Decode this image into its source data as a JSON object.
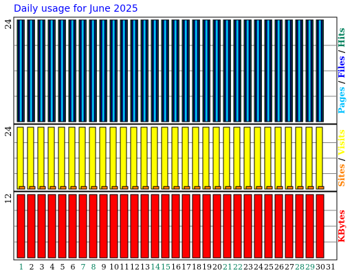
{
  "chart_data": {
    "type": "bar",
    "title": "Daily usage for June 2025",
    "x": [
      "1",
      "2",
      "3",
      "4",
      "5",
      "6",
      "7",
      "8",
      "9",
      "10",
      "11",
      "12",
      "13",
      "14",
      "15",
      "16",
      "17",
      "18",
      "19",
      "20",
      "21",
      "22",
      "23",
      "24",
      "25",
      "26",
      "27",
      "28",
      "29",
      "30",
      "31"
    ],
    "weekend_days": [
      "1",
      "7",
      "8",
      "14",
      "15",
      "21",
      "22",
      "28",
      "29"
    ],
    "colors": {
      "hits": "#00805c",
      "files": "#0000ff",
      "pages": "#00c0ff",
      "visits": "#ffff00",
      "sites": "#ff8000",
      "kbytes": "#ff0000",
      "weekend": "#00805c",
      "weekday": "#000000",
      "title": "#0000ff"
    },
    "panels": [
      {
        "id": "hits",
        "ymax_label": "24",
        "ymax": 24,
        "legend": [
          {
            "text": "Pages",
            "color": "#00c0ff"
          },
          {
            "text": " / ",
            "color": "#000000"
          },
          {
            "text": "Files",
            "color": "#0000ff"
          },
          {
            "text": " / ",
            "color": "#000000"
          },
          {
            "text": "Hits",
            "color": "#00805c"
          }
        ],
        "series": [
          {
            "name": "Hits",
            "color": "#00805c",
            "values": [
              24,
              24,
              24,
              24,
              24,
              24,
              24,
              24,
              24,
              24,
              24,
              24,
              24,
              24,
              24,
              24,
              24,
              24,
              24,
              24,
              24,
              24,
              24,
              24,
              24,
              24,
              24,
              24,
              24,
              24,
              0
            ]
          },
          {
            "name": "Files",
            "color": "#0000ff",
            "values": [
              24,
              24,
              24,
              24,
              24,
              24,
              24,
              24,
              24,
              24,
              24,
              24,
              24,
              24,
              24,
              24,
              24,
              24,
              24,
              24,
              24,
              24,
              24,
              24,
              24,
              24,
              24,
              24,
              24,
              24,
              0
            ]
          },
          {
            "name": "Pages",
            "color": "#00c0ff",
            "values": [
              24,
              24,
              24,
              24,
              24,
              24,
              24,
              24,
              24,
              24,
              24,
              24,
              24,
              24,
              24,
              24,
              24,
              24,
              24,
              24,
              24,
              24,
              24,
              24,
              24,
              24,
              24,
              24,
              24,
              24,
              0
            ]
          }
        ]
      },
      {
        "id": "visits",
        "ymax_label": "24",
        "ymax": 24,
        "legend": [
          {
            "text": "Sites",
            "color": "#ff8000"
          },
          {
            "text": " / ",
            "color": "#000000"
          },
          {
            "text": "Visits",
            "color": "#ffff00"
          }
        ],
        "series": [
          {
            "name": "Visits",
            "color": "#ffff00",
            "values": [
              24,
              24,
              24,
              24,
              24,
              24,
              24,
              24,
              24,
              24,
              24,
              24,
              24,
              24,
              24,
              24,
              24,
              24,
              24,
              24,
              24,
              24,
              24,
              24,
              24,
              24,
              24,
              24,
              24,
              24,
              0
            ]
          },
          {
            "name": "Sites",
            "color": "#ff8000",
            "values": [
              1,
              1,
              1,
              1,
              1,
              1,
              1,
              1,
              1,
              1,
              1,
              1,
              1,
              1,
              1,
              1,
              1,
              1,
              1,
              1,
              1,
              1,
              1,
              1,
              1,
              1,
              1,
              1,
              1,
              1,
              0
            ]
          }
        ]
      },
      {
        "id": "kbytes",
        "ymax_label": "12",
        "ymax": 12,
        "legend": [
          {
            "text": "KBytes",
            "color": "#ff0000"
          }
        ],
        "series": [
          {
            "name": "KBytes",
            "color": "#ff0000",
            "values": [
              12,
              12,
              12,
              12,
              12,
              12,
              12,
              12,
              12,
              12,
              12,
              12,
              12,
              12,
              12,
              12,
              12,
              12,
              12,
              12,
              12,
              12,
              12,
              12,
              12,
              12,
              12,
              12,
              12,
              12,
              0
            ]
          }
        ]
      }
    ]
  }
}
